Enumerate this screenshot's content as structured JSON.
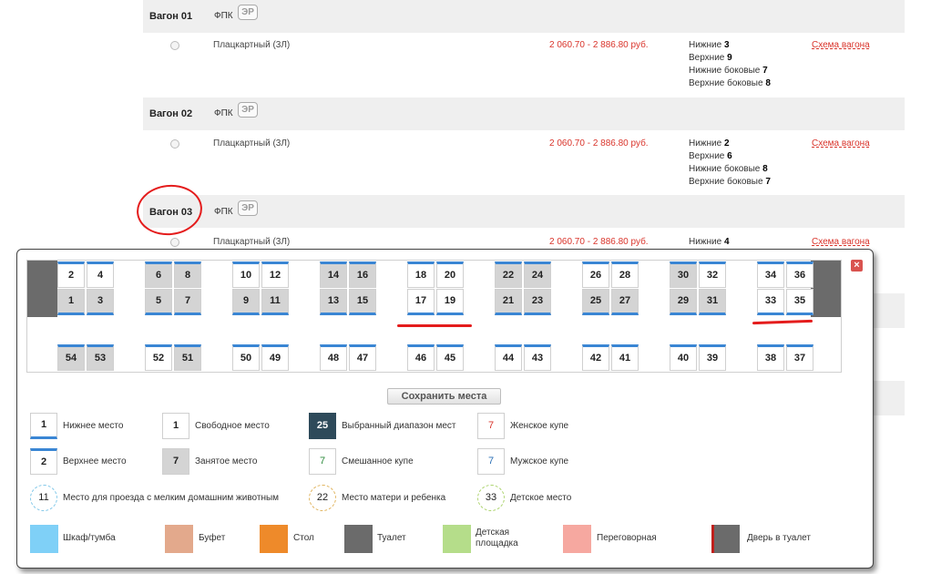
{
  "wagons": [
    {
      "number": "Вагон 01",
      "carrier": "ФПК",
      "badge": "ЭР",
      "class": "Плацкартный (3Л)",
      "price": "2 060.70 - 2 886.80 руб.",
      "berths": [
        {
          "label": "Нижние",
          "count": "3"
        },
        {
          "label": "Верхние",
          "count": "9"
        },
        {
          "label": "Нижние боковые",
          "count": "7"
        },
        {
          "label": "Верхние боковые",
          "count": "8"
        }
      ],
      "scheme_link": "Схема вагона"
    },
    {
      "number": "Вагон 02",
      "carrier": "ФПК",
      "badge": "ЭР",
      "class": "Плацкартный (3Л)",
      "price": "2 060.70 - 2 886.80 руб.",
      "berths": [
        {
          "label": "Нижние",
          "count": "2"
        },
        {
          "label": "Верхние",
          "count": "6"
        },
        {
          "label": "Нижние боковые",
          "count": "8"
        },
        {
          "label": "Верхние боковые",
          "count": "7"
        }
      ],
      "scheme_link": "Схема вагона"
    },
    {
      "number": "Вагон 03",
      "carrier": "ФПК",
      "badge": "ЭР",
      "class": "Плацкартный (3Л)",
      "price": "2 060.70 - 2 886.80 руб.",
      "berths": [
        {
          "label": "Нижние",
          "count": "4"
        }
      ],
      "scheme_link": "Схема вагона"
    }
  ],
  "close_icon": "×",
  "seat_map": {
    "compartments": [
      {
        "upper": [
          {
            "n": "2",
            "occ": false
          },
          {
            "n": "4",
            "occ": false
          }
        ],
        "lower": [
          {
            "n": "1",
            "occ": true
          },
          {
            "n": "3",
            "occ": true
          }
        ]
      },
      {
        "upper": [
          {
            "n": "6",
            "occ": true
          },
          {
            "n": "8",
            "occ": true
          }
        ],
        "lower": [
          {
            "n": "5",
            "occ": true
          },
          {
            "n": "7",
            "occ": true
          }
        ]
      },
      {
        "upper": [
          {
            "n": "10",
            "occ": false
          },
          {
            "n": "12",
            "occ": false
          }
        ],
        "lower": [
          {
            "n": "9",
            "occ": true
          },
          {
            "n": "11",
            "occ": true
          }
        ]
      },
      {
        "upper": [
          {
            "n": "14",
            "occ": true
          },
          {
            "n": "16",
            "occ": true
          }
        ],
        "lower": [
          {
            "n": "13",
            "occ": true
          },
          {
            "n": "15",
            "occ": true
          }
        ]
      },
      {
        "upper": [
          {
            "n": "18",
            "occ": false
          },
          {
            "n": "20",
            "occ": false
          }
        ],
        "lower": [
          {
            "n": "17",
            "occ": false
          },
          {
            "n": "19",
            "occ": false
          }
        ]
      },
      {
        "upper": [
          {
            "n": "22",
            "occ": true
          },
          {
            "n": "24",
            "occ": true
          }
        ],
        "lower": [
          {
            "n": "21",
            "occ": true
          },
          {
            "n": "23",
            "occ": true
          }
        ]
      },
      {
        "upper": [
          {
            "n": "26",
            "occ": false
          },
          {
            "n": "28",
            "occ": false
          }
        ],
        "lower": [
          {
            "n": "25",
            "occ": true
          },
          {
            "n": "27",
            "occ": true
          }
        ]
      },
      {
        "upper": [
          {
            "n": "30",
            "occ": true
          },
          {
            "n": "32",
            "occ": false
          }
        ],
        "lower": [
          {
            "n": "29",
            "occ": true
          },
          {
            "n": "31",
            "occ": true
          }
        ]
      },
      {
        "upper": [
          {
            "n": "34",
            "occ": false
          },
          {
            "n": "36",
            "occ": false
          }
        ],
        "lower": [
          {
            "n": "33",
            "occ": false
          },
          {
            "n": "35",
            "occ": false
          }
        ]
      }
    ],
    "side": [
      [
        {
          "n": "54",
          "occ": true
        },
        {
          "n": "53",
          "occ": true
        }
      ],
      [
        {
          "n": "52",
          "occ": false
        },
        {
          "n": "51",
          "occ": true
        }
      ],
      [
        {
          "n": "50",
          "occ": false
        },
        {
          "n": "49",
          "occ": false
        }
      ],
      [
        {
          "n": "48",
          "occ": false
        },
        {
          "n": "47",
          "occ": false
        }
      ],
      [
        {
          "n": "46",
          "occ": false
        },
        {
          "n": "45",
          "occ": false
        }
      ],
      [
        {
          "n": "44",
          "occ": false
        },
        {
          "n": "43",
          "occ": false
        }
      ],
      [
        {
          "n": "42",
          "occ": false
        },
        {
          "n": "41",
          "occ": false
        }
      ],
      [
        {
          "n": "40",
          "occ": false
        },
        {
          "n": "39",
          "occ": false
        }
      ],
      [
        {
          "n": "38",
          "occ": false
        },
        {
          "n": "37",
          "occ": false
        }
      ]
    ]
  },
  "save_button": "Сохранить места",
  "legend": {
    "lower_seat": {
      "num": "1",
      "label": "Нижнее место"
    },
    "free_seat": {
      "num": "1",
      "label": "Свободное место"
    },
    "selected_range": {
      "num": "25",
      "label": "Выбранный диапазон мест"
    },
    "female_coupe": {
      "num": "7",
      "label": "Женское купе"
    },
    "upper_seat": {
      "num": "2",
      "label": "Верхнее место"
    },
    "occupied_seat": {
      "num": "7",
      "label": "Занятое место"
    },
    "mixed_coupe": {
      "num": "7",
      "label": "Смешанное купе"
    },
    "male_coupe": {
      "num": "7",
      "label": "Мужское купе"
    },
    "pet_seat": {
      "num": "11",
      "label": "Место для проезда с мелким домашним животным"
    },
    "mother_seat": {
      "num": "22",
      "label": "Место матери и ребенка"
    },
    "child_seat": {
      "num": "33",
      "label": "Детское место"
    },
    "wardrobe": {
      "label": "Шкаф/тумба",
      "color": "#7fd0f7"
    },
    "buffet": {
      "label": "Буфет",
      "color": "#e3a98c"
    },
    "table": {
      "label": "Стол",
      "color": "#ee8a2a"
    },
    "toilet": {
      "label": "Туалет",
      "color": "#6b6b6b"
    },
    "playground": {
      "label1": "Детская",
      "label2": "площадка",
      "color": "#b5dd8a"
    },
    "meeting": {
      "label": "Переговорная",
      "color": "#f6a8a0"
    },
    "toilet_door": {
      "label": "Дверь в туалет",
      "color": "#6b6b6b"
    }
  }
}
